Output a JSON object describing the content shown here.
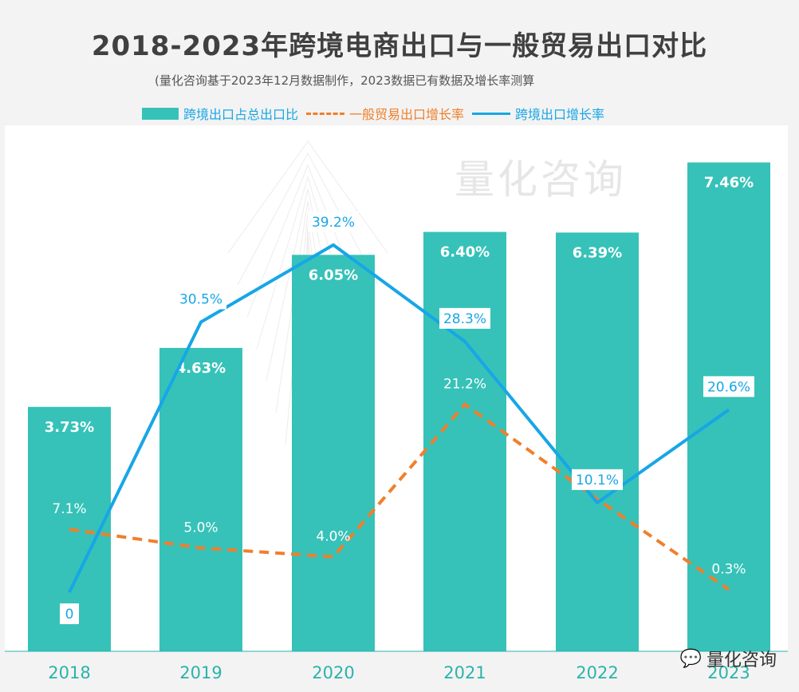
{
  "title": "2018-2023年跨境电商出口与一般贸易出口对比",
  "subtitle": "(量化咨询基于2023年12月数据制作，2023数据已有数据及增长率测算",
  "watermark": "量化咨询",
  "colors": {
    "bar": "#36c2b8",
    "general": "#f07f2c",
    "crossborder": "#17a6e6",
    "axis": "#2bb3aa"
  },
  "chart_data": {
    "type": "bar",
    "categories": [
      "2018",
      "2019",
      "2020",
      "2021",
      "2022",
      "2023"
    ],
    "series": [
      {
        "name": "跨境出口占总出口比",
        "type": "bar",
        "values": [
          3.73,
          4.63,
          6.05,
          6.4,
          6.39,
          7.46
        ],
        "labels": [
          "3.73%",
          "4.63%",
          "6.05%",
          "6.40%",
          "6.39%",
          "7.46%"
        ]
      },
      {
        "name": "一般贸易出口增长率",
        "type": "line-dashed",
        "values": [
          7.1,
          5.0,
          4.0,
          21.2,
          10.5,
          0.3
        ],
        "labels": [
          "7.1%",
          "5.0%",
          "4.0%",
          "21.2%",
          "10.5%",
          "0.3%"
        ]
      },
      {
        "name": "跨境出口增长率",
        "type": "line",
        "values": [
          0,
          30.5,
          39.2,
          28.3,
          10.1,
          20.6
        ],
        "labels": [
          "0",
          "30.5%",
          "39.2%",
          "28.3%",
          "10.1%",
          "20.6%"
        ]
      }
    ],
    "legend_position": "top",
    "grid": false
  },
  "footer": {
    "brand": "量化咨询",
    "icon": "wechat-icon"
  }
}
